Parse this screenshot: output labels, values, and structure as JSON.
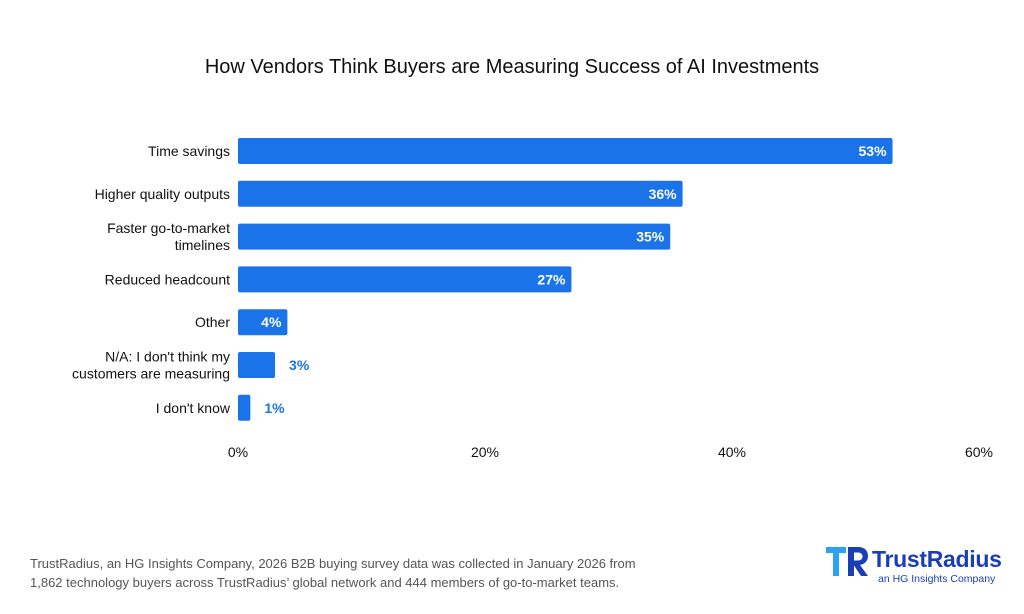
{
  "chart_data": {
    "type": "bar",
    "orientation": "horizontal",
    "title": "How Vendors Think Buyers are Measuring Success of AI Investments",
    "categories": [
      "Time savings",
      "Higher quality outputs",
      "Faster go-to-market timelines",
      "Reduced headcount",
      "Other",
      "N/A: I don't think my customers are measuring",
      "I don't know"
    ],
    "category_lines": [
      [
        "Time savings"
      ],
      [
        "Higher quality outputs"
      ],
      [
        "Faster go-to-market",
        "timelines"
      ],
      [
        "Reduced headcount"
      ],
      [
        "Other"
      ],
      [
        "N/A: I don't think my",
        "customers are measuring"
      ],
      [
        "I don't know"
      ]
    ],
    "values": [
      53,
      36,
      35,
      27,
      4,
      3,
      1
    ],
    "value_labels": [
      "53%",
      "36%",
      "35%",
      "27%",
      "4%",
      "3%",
      "1%"
    ],
    "xlim": [
      0,
      60
    ],
    "x_ticks": [
      0,
      20,
      40,
      60
    ],
    "x_tick_labels": [
      "0%",
      "20%",
      "40%",
      "60%"
    ],
    "grid": false,
    "legend": "none",
    "colors": {
      "bar": "#1a73e8",
      "label_outside": "#1a73e8"
    }
  },
  "footnote": {
    "line1": "TrustRadius, an HG Insights Company, 2026 B2B buying survey data was collected in January 2026 from",
    "line2": "1,862 technology buyers across TrustRadius’ global network and 444 members of go-to-market teams."
  },
  "logo": {
    "name": "TrustRadius",
    "tagline": "an HG Insights Company",
    "colors": {
      "primary": "#1a3fb5",
      "accent": "#2aa3f0"
    }
  }
}
